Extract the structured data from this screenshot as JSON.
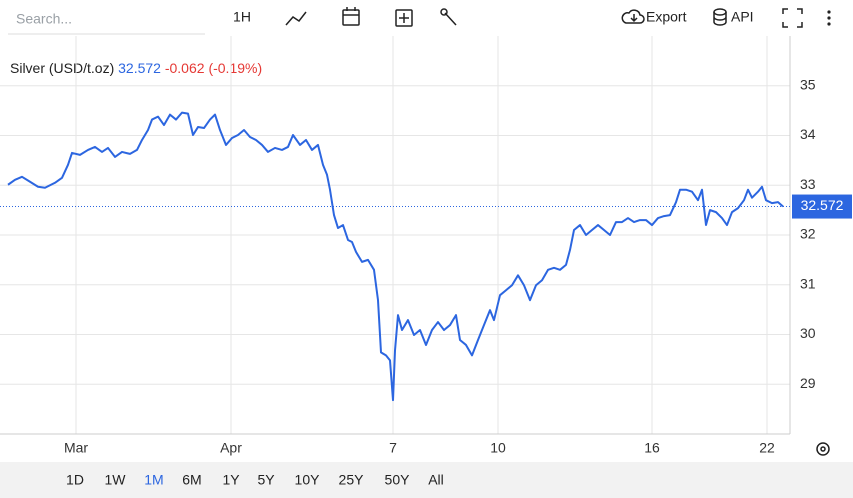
{
  "toolbar": {
    "search_placeholder": "Search...",
    "interval": "1H",
    "export": "Export",
    "api": "API"
  },
  "ranges": {
    "items": [
      "1D",
      "1W",
      "1M",
      "6M",
      "1Y",
      "5Y",
      "10Y",
      "25Y",
      "50Y",
      "All"
    ],
    "active": 2
  },
  "chart_data": {
    "type": "line",
    "title": "Silver (USD/t.oz)",
    "change": -0.062,
    "change_label": "(-0.19%)",
    "x": [
      0,
      7,
      14,
      22,
      30,
      37,
      47,
      54,
      60,
      64,
      72,
      80,
      87,
      94,
      100,
      107,
      114,
      122,
      129,
      134,
      140,
      144,
      150,
      156,
      162,
      168,
      174,
      180,
      185,
      190,
      196,
      202,
      207,
      212,
      218,
      224,
      230,
      236,
      242,
      248,
      254,
      260,
      267,
      274,
      280,
      285,
      292,
      298,
      304,
      310,
      315,
      319,
      322,
      326,
      330,
      335,
      340,
      344,
      348,
      354,
      360,
      366,
      370,
      373,
      378,
      382,
      385,
      387,
      390,
      394,
      400,
      406,
      412,
      418,
      424,
      430,
      436,
      442,
      448,
      452,
      458,
      464,
      470,
      476,
      482,
      486,
      492,
      498,
      504,
      510,
      516,
      522,
      528,
      534,
      540,
      546,
      552,
      558,
      562,
      566,
      572,
      578,
      584,
      590,
      596,
      602,
      608,
      614,
      620,
      626,
      632,
      638,
      644,
      650,
      656,
      662,
      668,
      672,
      678,
      684,
      690,
      694,
      698,
      702,
      708,
      714,
      719,
      724,
      730,
      736,
      740,
      744,
      750,
      754,
      758,
      764,
      770,
      775
    ],
    "series": [
      {
        "name": "Silver (USD/t.oz)",
        "color": "#2c66e0",
        "values": [
          33.01,
          33.11,
          33.17,
          33.07,
          32.97,
          32.95,
          33.05,
          33.15,
          33.41,
          33.65,
          33.61,
          33.71,
          33.77,
          33.67,
          33.75,
          33.57,
          33.67,
          33.63,
          33.71,
          33.91,
          34.11,
          34.32,
          34.38,
          34.21,
          34.42,
          34.32,
          34.46,
          34.44,
          34.01,
          34.17,
          34.15,
          34.32,
          34.42,
          34.11,
          33.81,
          33.95,
          34.01,
          34.11,
          33.97,
          33.91,
          33.81,
          33.67,
          33.75,
          33.71,
          33.77,
          34.01,
          33.81,
          33.91,
          33.71,
          33.81,
          33.41,
          33.21,
          32.91,
          32.4,
          32.14,
          32.2,
          31.9,
          31.86,
          31.66,
          31.46,
          31.5,
          31.3,
          30.69,
          29.64,
          29.58,
          29.48,
          28.68,
          29.68,
          30.39,
          30.09,
          30.29,
          29.99,
          30.09,
          29.79,
          30.09,
          30.25,
          30.09,
          30.19,
          30.39,
          29.89,
          29.79,
          29.58,
          29.89,
          30.19,
          30.49,
          30.29,
          30.79,
          30.89,
          30.99,
          31.19,
          30.99,
          30.69,
          30.99,
          31.09,
          31.3,
          31.34,
          31.3,
          31.4,
          31.7,
          32.1,
          32.2,
          32.0,
          32.1,
          32.2,
          32.1,
          32.0,
          32.26,
          32.26,
          32.34,
          32.26,
          32.3,
          32.3,
          32.2,
          32.34,
          32.38,
          32.4,
          32.66,
          32.91,
          32.91,
          32.87,
          32.7,
          32.91,
          32.2,
          32.5,
          32.46,
          32.34,
          32.2,
          32.46,
          32.54,
          32.7,
          32.91,
          32.75,
          32.87,
          32.97,
          32.7,
          32.64,
          32.66,
          32.572
        ]
      }
    ],
    "xlim": [
      0,
      775
    ],
    "xticks": [
      {
        "value": 68,
        "label": "Mar"
      },
      {
        "value": 223,
        "label": "Apr"
      },
      {
        "value": 385,
        "label": "7"
      },
      {
        "value": 490,
        "label": "10"
      },
      {
        "value": 644,
        "label": "16"
      },
      {
        "value": 759,
        "label": "22"
      }
    ],
    "ylim": [
      28,
      36
    ],
    "yticks": [
      29,
      30,
      31,
      32,
      33,
      34,
      35
    ],
    "grid": true
  }
}
